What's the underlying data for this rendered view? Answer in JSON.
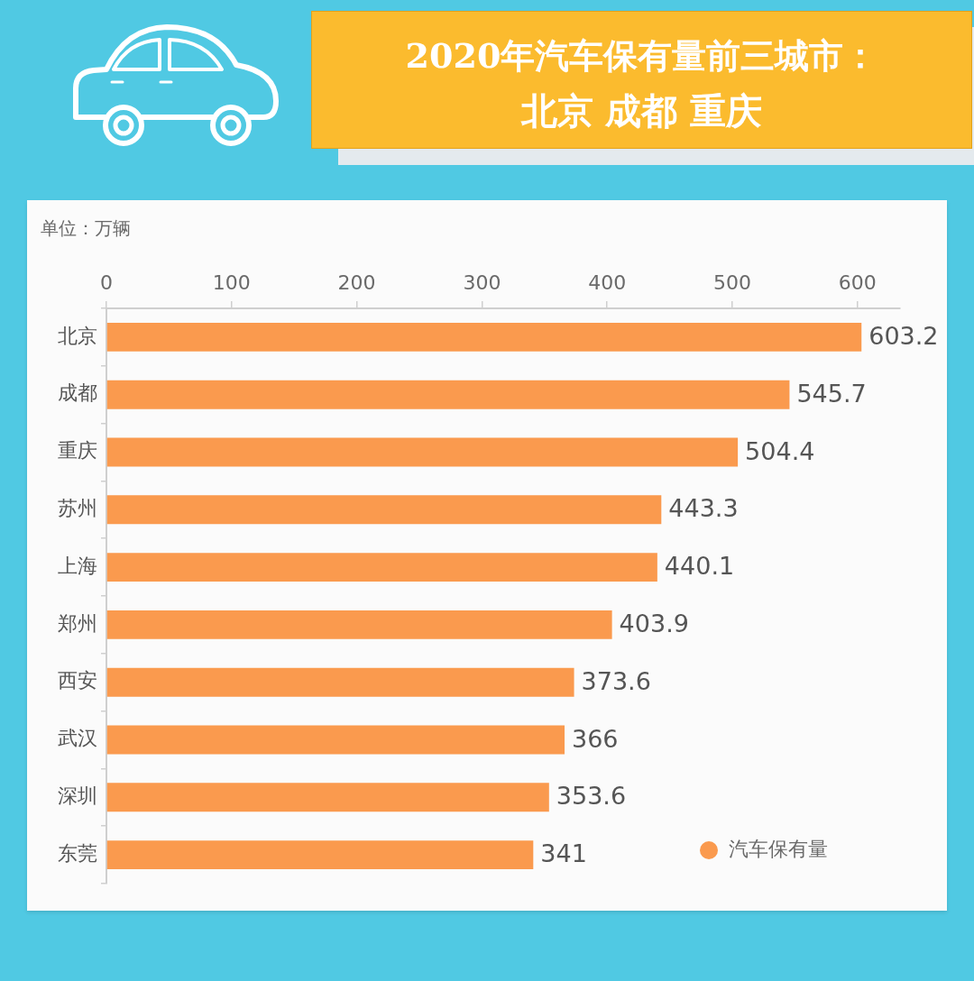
{
  "chart_data": {
    "type": "bar",
    "orientation": "horizontal",
    "title": "2020年汽车保有量前三城市：",
    "subtitle": "北京 成都 重庆",
    "annotations": [
      "单位：万辆"
    ],
    "categories": [
      "北京",
      "成都",
      "重庆",
      "苏州",
      "上海",
      "郑州",
      "西安",
      "武汉",
      "深圳",
      "东莞"
    ],
    "series": [
      {
        "name": "汽车保有量",
        "color": "#fa9a4e",
        "values": [
          603.2,
          545.7,
          504.4,
          443.3,
          440.1,
          403.9,
          373.6,
          366,
          353.6,
          341
        ]
      }
    ],
    "xlim": [
      0,
      634
    ],
    "xticks": [
      0,
      100,
      200,
      300,
      400,
      500,
      600
    ],
    "grid": false,
    "legend": "bottom right",
    "data_labels": true
  }
}
